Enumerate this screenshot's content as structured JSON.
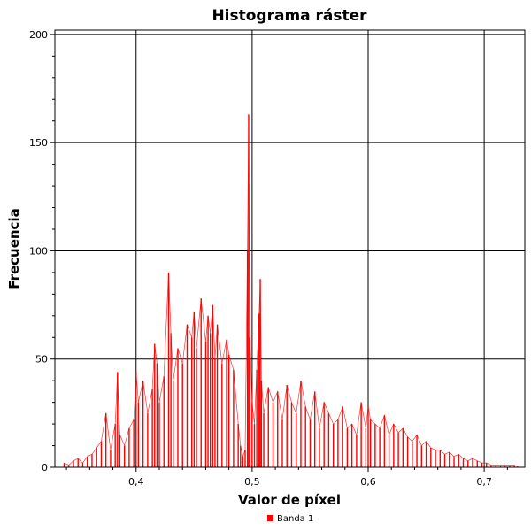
{
  "chart_data": {
    "type": "line",
    "title": "Histograma ráster",
    "xlabel": "Valor de píxel",
    "ylabel": "Frecuencia",
    "xlim": [
      0.33,
      0.735
    ],
    "ylim": [
      0,
      202
    ],
    "x_ticks": [
      0.4,
      0.5,
      0.6,
      0.7
    ],
    "x_tick_labels": [
      "0,4",
      "0,5",
      "0,6",
      "0,7"
    ],
    "y_ticks": [
      0,
      50,
      100,
      150,
      200
    ],
    "y_tick_labels": [
      "0",
      "50",
      "100",
      "150",
      "200"
    ],
    "grid": true,
    "legend_position": "bottom-center",
    "series": [
      {
        "name": "Banda 1",
        "color": "#ff0000",
        "x": [
          0.338,
          0.342,
          0.346,
          0.35,
          0.354,
          0.358,
          0.362,
          0.366,
          0.37,
          0.374,
          0.378,
          0.382,
          0.384,
          0.386,
          0.39,
          0.394,
          0.398,
          0.4,
          0.402,
          0.406,
          0.41,
          0.414,
          0.416,
          0.418,
          0.42,
          0.424,
          0.428,
          0.43,
          0.432,
          0.436,
          0.44,
          0.444,
          0.448,
          0.45,
          0.452,
          0.456,
          0.46,
          0.462,
          0.464,
          0.466,
          0.468,
          0.47,
          0.474,
          0.478,
          0.48,
          0.484,
          0.488,
          0.49,
          0.492,
          0.494,
          0.496,
          0.497,
          0.498,
          0.5,
          0.502,
          0.504,
          0.506,
          0.507,
          0.508,
          0.51,
          0.514,
          0.518,
          0.522,
          0.526,
          0.53,
          0.534,
          0.538,
          0.542,
          0.546,
          0.55,
          0.554,
          0.558,
          0.562,
          0.566,
          0.57,
          0.574,
          0.578,
          0.582,
          0.586,
          0.59,
          0.594,
          0.598,
          0.6,
          0.602,
          0.606,
          0.61,
          0.614,
          0.618,
          0.622,
          0.626,
          0.63,
          0.634,
          0.638,
          0.642,
          0.646,
          0.65,
          0.654,
          0.658,
          0.662,
          0.666,
          0.67,
          0.674,
          0.678,
          0.682,
          0.686,
          0.69,
          0.694,
          0.698,
          0.702,
          0.706,
          0.71,
          0.714,
          0.718,
          0.722,
          0.726,
          0.73
        ],
        "values": [
          2,
          1,
          3,
          4,
          2,
          5,
          6,
          9,
          12,
          25,
          8,
          20,
          44,
          15,
          10,
          18,
          22,
          44,
          30,
          40,
          25,
          36,
          57,
          48,
          30,
          42,
          90,
          62,
          40,
          55,
          48,
          66,
          60,
          72,
          55,
          78,
          58,
          70,
          62,
          75,
          50,
          66,
          48,
          59,
          52,
          45,
          20,
          10,
          5,
          8,
          100,
          163,
          60,
          30,
          20,
          45,
          71,
          87,
          40,
          25,
          37,
          30,
          35,
          22,
          38,
          30,
          25,
          40,
          28,
          22,
          35,
          18,
          30,
          25,
          20,
          22,
          28,
          18,
          20,
          15,
          30,
          18,
          28,
          22,
          20,
          18,
          24,
          15,
          20,
          16,
          18,
          14,
          12,
          15,
          10,
          12,
          9,
          8,
          8,
          6,
          7,
          5,
          6,
          4,
          3,
          4,
          3,
          2,
          2,
          1,
          1,
          1,
          1,
          1,
          1,
          0
        ]
      }
    ]
  }
}
